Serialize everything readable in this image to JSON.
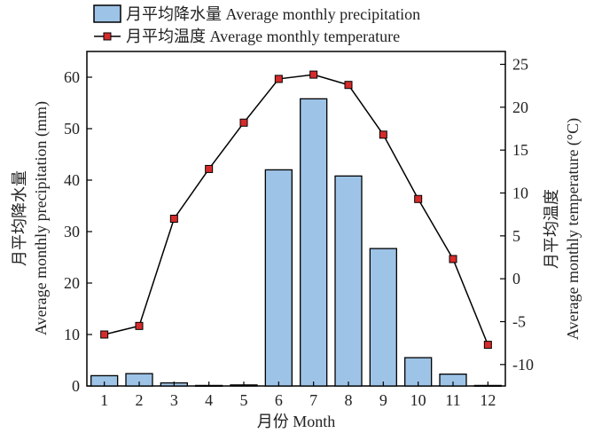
{
  "chart_data": {
    "type": "bar+line",
    "categories": [
      "1",
      "2",
      "3",
      "4",
      "5",
      "6",
      "7",
      "8",
      "9",
      "10",
      "11",
      "12"
    ],
    "series": [
      {
        "name": "月平均降水量 Average monthly precipitation",
        "type": "bar",
        "axis": "left",
        "color": "#9dc3e6",
        "values": [
          2.0,
          2.4,
          0.6,
          0.1,
          0.2,
          42.0,
          55.8,
          40.8,
          26.7,
          5.5,
          2.3,
          0.1
        ]
      },
      {
        "name": "月平均温度 Average monthly temperature",
        "type": "line",
        "axis": "right",
        "color": "#d62b2b",
        "values": [
          -6.5,
          -5.5,
          7.0,
          12.8,
          18.2,
          23.3,
          23.8,
          22.6,
          16.8,
          9.3,
          2.3,
          -7.7
        ]
      }
    ],
    "xlabel": "月份 Month",
    "ylabel_left_line1": "月平均降水量",
    "ylabel_left_line2": "Average monthly precipitation (mm)",
    "ylabel_right_line1": "月平均温度",
    "ylabel_right_line2": "Average monthly temperature (°C)",
    "ylim_left": [
      0,
      65
    ],
    "ylim_right": [
      -12.5,
      26.5
    ],
    "yticks_left": [
      "0",
      "10",
      "20",
      "30",
      "40",
      "50",
      "60"
    ],
    "yticks_right": [
      "-10",
      "-5",
      "0",
      "5",
      "10",
      "15",
      "20",
      "25"
    ],
    "grid": false,
    "legend_position": "top-left"
  }
}
